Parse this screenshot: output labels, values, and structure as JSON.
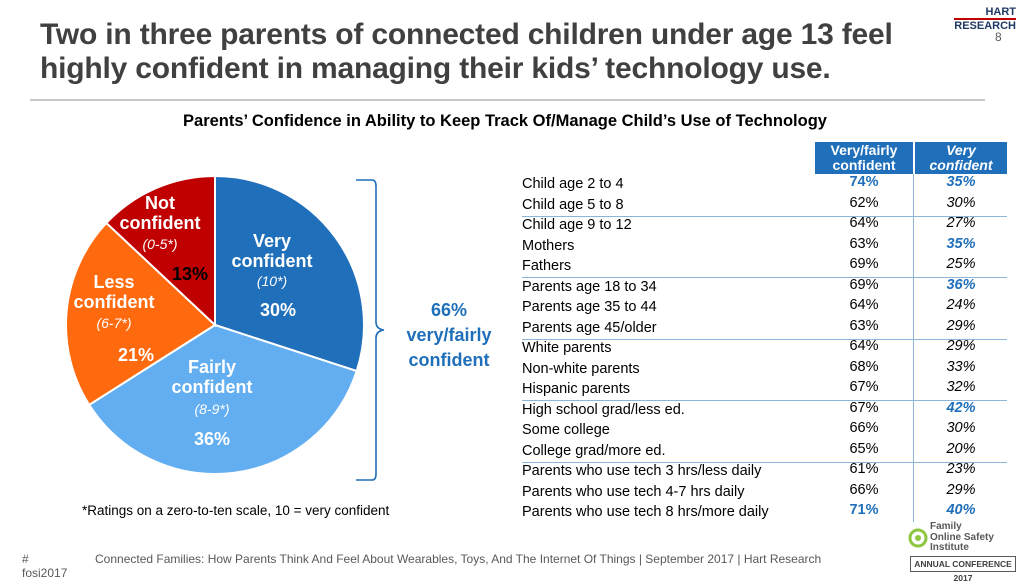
{
  "header": {
    "title": "Two in three parents of connected children under age 13 feel highly confident in managing their kids’ technology use.",
    "page_number": "8",
    "logo": {
      "line1": "HART",
      "line2": "RESEARCH"
    }
  },
  "chart_data": [
    {
      "type": "pie",
      "title": "Parents’ Confidence in Ability to Keep Track Of/Manage Child’s Use of Technology",
      "slices": [
        {
          "name": "Very confident",
          "range": "(10*)",
          "value": 30,
          "label": "30%",
          "color": "#1f6fba"
        },
        {
          "name": "Fairly confident",
          "range": "(8-9*)",
          "value": 36,
          "label": "36%",
          "color": "#62aef0"
        },
        {
          "name": "Less confident",
          "range": "(6-7*)",
          "value": 21,
          "label": "21%",
          "color": "#ff6a0f"
        },
        {
          "name": "Not confident",
          "range": "(0-5*)",
          "value": 13,
          "label": "13%",
          "color": "#c00000"
        }
      ],
      "annotation": {
        "value": "66%",
        "line1": "very/fairly",
        "line2": "confident"
      },
      "footnote": "*Ratings on a zero-to-ten scale, 10 = very confident"
    },
    {
      "type": "table",
      "columns": [
        "",
        "Very/fairly confident",
        "Very confident"
      ],
      "column_heads": {
        "col1_line1": "Very/fairly",
        "col1_line2": "confident",
        "col2_line1": "Very",
        "col2_line2": "confident"
      },
      "rows": [
        {
          "label": "Child age 2 to 4",
          "vf": "74%",
          "v": "35%",
          "vf_hl": true,
          "v_hl": true
        },
        {
          "label": "Child age 5 to 8",
          "vf": "62%",
          "v": "30%"
        },
        {
          "label": "Child age 9 to 12",
          "vf": "64%",
          "v": "27%"
        },
        {
          "label": "Mothers",
          "vf": "63%",
          "v": "35%",
          "v_hl": true
        },
        {
          "label": "Fathers",
          "vf": "69%",
          "v": "25%"
        },
        {
          "label": "Parents age 18 to 34",
          "vf": "69%",
          "v": "36%",
          "v_hl": true
        },
        {
          "label": "Parents age 35 to 44",
          "vf": "64%",
          "v": "24%"
        },
        {
          "label": "Parents age 45/older",
          "vf": "63%",
          "v": "29%"
        },
        {
          "label": "White parents",
          "vf": "64%",
          "v": "29%"
        },
        {
          "label": "Non-white parents",
          "vf": "68%",
          "v": "33%"
        },
        {
          "label": "Hispanic parents",
          "vf": "67%",
          "v": "32%"
        },
        {
          "label": "High school grad/less ed.",
          "vf": "67%",
          "v": "42%",
          "v_hl": true
        },
        {
          "label": "Some college",
          "vf": "66%",
          "v": "30%"
        },
        {
          "label": "College grad/more ed.",
          "vf": "65%",
          "v": "20%"
        },
        {
          "label": "Parents who use tech 3 hrs/less daily",
          "vf": "61%",
          "v": "23%"
        },
        {
          "label": "Parents who use tech  4-7 hrs daily",
          "vf": "66%",
          "v": "29%"
        },
        {
          "label": "Parents who use tech 8 hrs/more daily",
          "vf": "71%",
          "v": "40%",
          "vf_hl": true,
          "v_hl": true
        }
      ]
    }
  ],
  "footer": {
    "hashtag": "# fosi2017",
    "source": "Connected Families: How Parents Think And Feel About Wearables, Toys, And The Internet Of Things | September 2017 | Hart Research",
    "fosi_line1": "Family",
    "fosi_line2": "Online Safety",
    "fosi_line3": "Institute",
    "fosi_badge": "ANNUAL CONFERENCE 2017"
  }
}
